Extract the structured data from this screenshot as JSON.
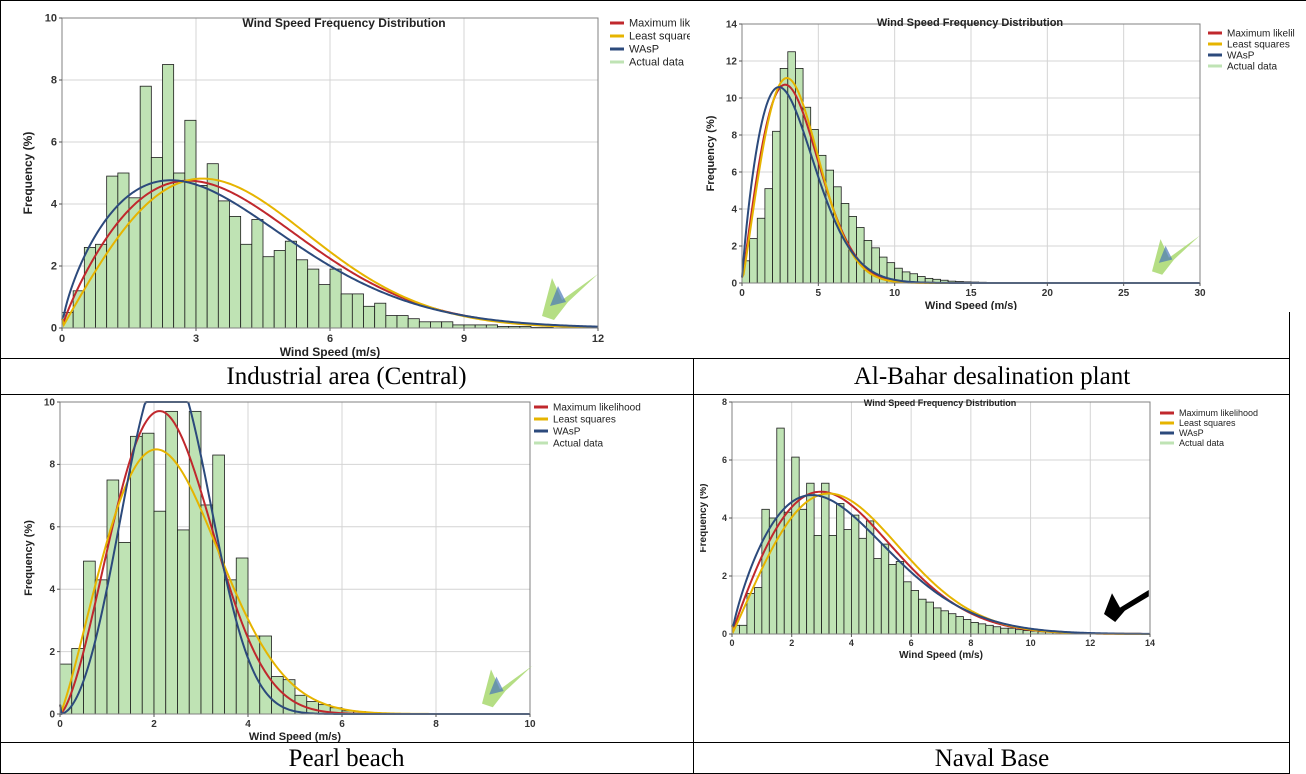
{
  "captions": [
    "Industrial area (Central)",
    "Al-Bahar desalination plant",
    "Pearl beach",
    "Naval Base"
  ],
  "colors": {
    "max_likelihood": "#c0282d",
    "least_squares": "#e6b400",
    "wasp": "#2c4a7c",
    "actual": "#bfe3b4",
    "bar_stroke": "#1c1c1c",
    "grid": "#d4d4d4"
  },
  "chart_data": [
    {
      "type": "bar",
      "title": "Wind Speed Frequency Distribution",
      "xlabel": "Wind Speed (m/s)",
      "ylabel": "Frequency (%)",
      "xlim": [
        0,
        12
      ],
      "ylim": [
        0,
        10
      ],
      "xticks": [
        "0",
        "3",
        "6",
        "9",
        "12"
      ],
      "yticks": [
        "0",
        "2",
        "4",
        "6",
        "8",
        "10"
      ],
      "legend": [
        "Maximum likeli",
        "Least squares",
        "WAsP",
        "Actual data"
      ],
      "bins": {
        "start": 0,
        "width": 0.25
      },
      "values": [
        0.5,
        1.2,
        2.6,
        2.7,
        4.9,
        5.0,
        4.2,
        7.8,
        5.5,
        8.5,
        5.0,
        6.7,
        4.6,
        5.3,
        4.1,
        3.6,
        2.7,
        3.5,
        2.3,
        2.5,
        2.8,
        2.2,
        1.9,
        1.4,
        1.9,
        1.1,
        1.1,
        0.7,
        0.8,
        0.4,
        0.4,
        0.3,
        0.2,
        0.2,
        0.2,
        0.1,
        0.1,
        0.1,
        0.1,
        0.05,
        0.05,
        0.05,
        0.02,
        0.02
      ],
      "series": [
        {
          "name": "Maximum likeli",
          "key": "max_likelihood",
          "k": 1.85,
          "c": 4.3,
          "scale": 25
        },
        {
          "name": "Least squares",
          "key": "least_squares",
          "k": 2.0,
          "c": 4.45,
          "scale": 25
        },
        {
          "name": "WAsP",
          "key": "wasp",
          "k": 1.7,
          "c": 4.1,
          "scale": 25
        }
      ],
      "grid": true,
      "legend_position": "right"
    },
    {
      "type": "bar",
      "title": "Wind Speed Frequency Distribution",
      "xlabel": "Wind Speed (m/s)",
      "ylabel": "Frequency (%)",
      "xlim": [
        0,
        30
      ],
      "ylim": [
        0,
        14
      ],
      "xticks": [
        "0",
        "5",
        "10",
        "15",
        "20",
        "25",
        "30"
      ],
      "yticks": [
        "0",
        "2",
        "4",
        "6",
        "8",
        "10",
        "12",
        "14"
      ],
      "legend": [
        "Maximum likelil",
        "Least squares",
        "WAsP",
        "Actual data"
      ],
      "bins": {
        "start": 0,
        "width": 0.5
      },
      "values": [
        1.2,
        2.4,
        3.5,
        5.1,
        8.2,
        11.6,
        12.5,
        11.6,
        9.5,
        8.3,
        6.9,
        6.1,
        5.2,
        4.3,
        3.6,
        3.0,
        2.3,
        1.9,
        1.4,
        1.1,
        0.8,
        0.6,
        0.5,
        0.35,
        0.25,
        0.2,
        0.15,
        0.1,
        0.08,
        0.06,
        0.05,
        0.04,
        0.03,
        0.02
      ],
      "series": [
        {
          "name": "Maximum likelil",
          "key": "max_likelihood",
          "k": 2.0,
          "c": 4.0,
          "scale": 50
        },
        {
          "name": "Least squares",
          "key": "least_squares",
          "k": 2.1,
          "c": 4.0,
          "scale": 50
        },
        {
          "name": "WAsP",
          "key": "wasp",
          "k": 1.8,
          "c": 3.8,
          "scale": 50
        }
      ],
      "grid": true,
      "legend_position": "right"
    },
    {
      "type": "bar",
      "title": "",
      "xlabel": "Wind Speed (m/s)",
      "ylabel": "Frequency (%)",
      "xlim": [
        0,
        10
      ],
      "ylim": [
        0,
        10
      ],
      "xticks": [
        "0",
        "2",
        "4",
        "6",
        "8",
        "10"
      ],
      "yticks": [
        "0",
        "2",
        "4",
        "6",
        "8",
        "10"
      ],
      "legend": [
        "Maximum likelihood",
        "Least squares",
        "WAsP",
        "Actual data"
      ],
      "bins": {
        "start": 0,
        "width": 0.25
      },
      "values": [
        1.6,
        2.1,
        4.9,
        4.3,
        7.5,
        5.5,
        8.9,
        9.0,
        6.5,
        9.7,
        5.9,
        9.7,
        6.7,
        8.3,
        4.3,
        5.0,
        2.5,
        2.5,
        1.2,
        1.1,
        0.6,
        0.4,
        0.3,
        0.2,
        0.1,
        0.08,
        0.05,
        0.03,
        0.02
      ],
      "series": [
        {
          "name": "Maximum likelihood",
          "key": "max_likelihood",
          "k": 2.5,
          "c": 2.6,
          "scale": 25
        },
        {
          "name": "Least squares",
          "key": "least_squares",
          "k": 2.2,
          "c": 2.7,
          "scale": 25
        },
        {
          "name": "WAsP",
          "key": "wasp",
          "k": 3.0,
          "c": 2.6,
          "scale": 25
        }
      ],
      "grid": true,
      "legend_position": "right"
    },
    {
      "type": "bar",
      "title": "Wind Speed Frequency Distribution",
      "xlabel": "Wind Speed (m/s)",
      "ylabel": "Frequency (%)",
      "xlim": [
        0,
        14
      ],
      "ylim": [
        0,
        8
      ],
      "xticks": [
        "0",
        "2",
        "4",
        "6",
        "8",
        "10",
        "12",
        "14"
      ],
      "yticks": [
        "0",
        "2",
        "4",
        "6",
        "8"
      ],
      "legend": [
        "Maximum likelihood",
        "Least squares",
        "WAsP",
        "Actual data"
      ],
      "bins": {
        "start": 0,
        "width": 0.25
      },
      "values": [
        0.3,
        0.3,
        1.4,
        1.6,
        4.3,
        4.0,
        7.1,
        4.2,
        6.1,
        4.3,
        5.2,
        3.4,
        5.2,
        3.4,
        4.5,
        3.6,
        4.1,
        3.3,
        3.9,
        2.6,
        3.1,
        2.4,
        2.5,
        1.8,
        1.5,
        1.2,
        1.1,
        0.9,
        0.8,
        0.7,
        0.6,
        0.5,
        0.4,
        0.35,
        0.3,
        0.25,
        0.2,
        0.2,
        0.15,
        0.12,
        0.1,
        0.08,
        0.07,
        0.06,
        0.05,
        0.04,
        0.03,
        0.03,
        0.02,
        0.02,
        0.02,
        0.01,
        0.01,
        0.01,
        0.01,
        0.01
      ],
      "series": [
        {
          "name": "Maximum likelihood",
          "key": "max_likelihood",
          "k": 1.95,
          "c": 4.3,
          "scale": 25
        },
        {
          "name": "Least squares",
          "key": "least_squares",
          "k": 2.05,
          "c": 4.5,
          "scale": 25
        },
        {
          "name": "WAsP",
          "key": "wasp",
          "k": 1.8,
          "c": 4.2,
          "scale": 25
        }
      ],
      "grid": true,
      "legend_position": "right"
    }
  ]
}
